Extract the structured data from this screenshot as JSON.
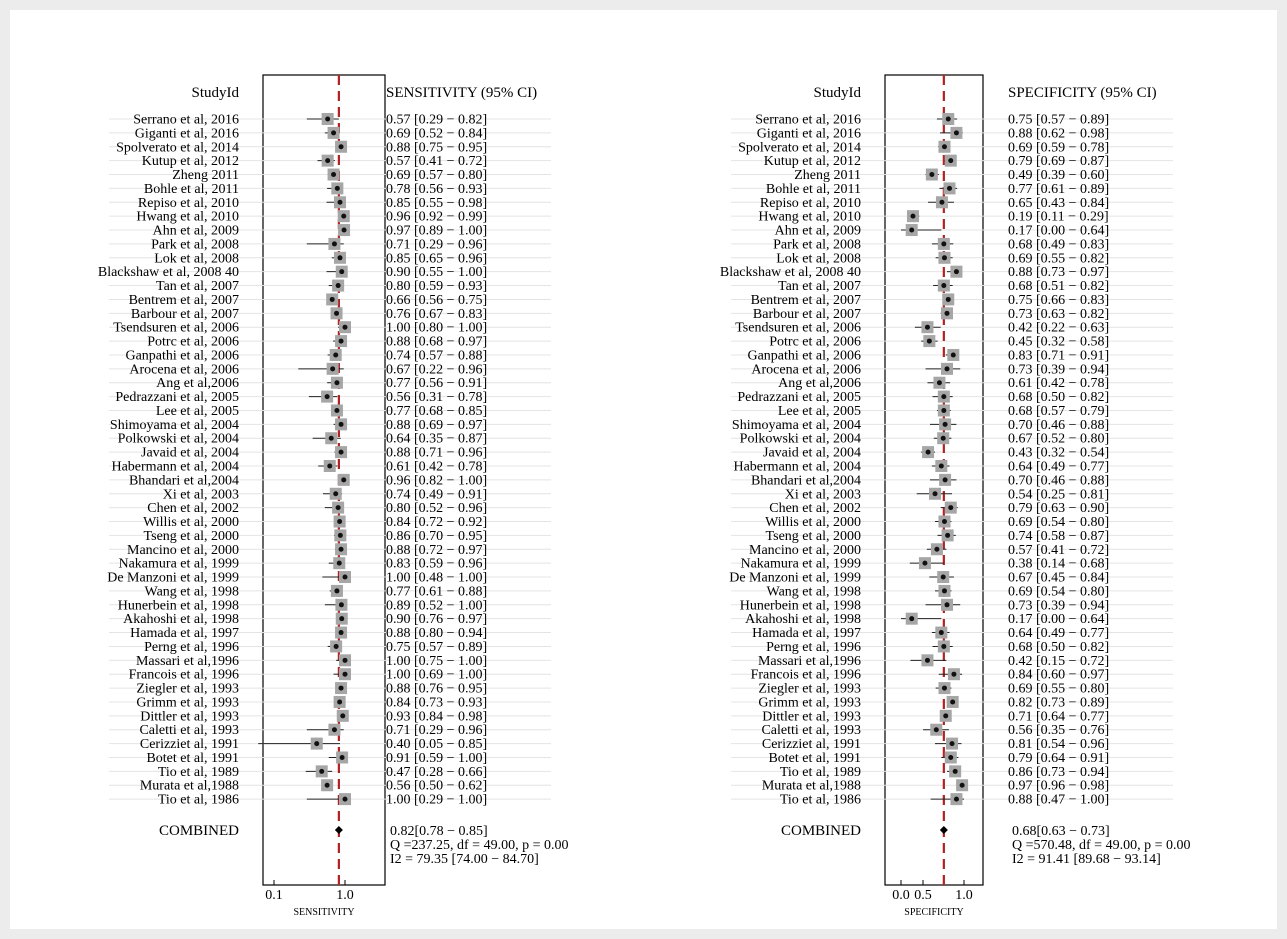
{
  "chart_data": [
    {
      "type": "forest",
      "id": "sens",
      "header_study": "StudyId",
      "header_ci": "SENSITIVITY (95% CI)",
      "xlabel": "SENSITIVITY",
      "x_ticks": [
        "0.1",
        "1.0"
      ],
      "x_scale": "log",
      "xlim": [
        0.05,
        1.45
      ],
      "pooled_value": 0.82,
      "studies": [
        {
          "study": "Serrano et al, 2016",
          "est": 0.57,
          "lo": 0.29,
          "hi": 0.82,
          "label": "0.57 [0.29 − 0.82]"
        },
        {
          "study": "Giganti et al, 2016",
          "est": 0.69,
          "lo": 0.52,
          "hi": 0.84,
          "label": "0.69 [0.52 − 0.84]"
        },
        {
          "study": "Spolverato et al, 2014",
          "est": 0.88,
          "lo": 0.75,
          "hi": 0.95,
          "label": "0.88 [0.75 − 0.95]"
        },
        {
          "study": "Kutup et al, 2012",
          "est": 0.57,
          "lo": 0.41,
          "hi": 0.72,
          "label": "0.57 [0.41 − 0.72]"
        },
        {
          "study": "Zheng 2011",
          "est": 0.69,
          "lo": 0.57,
          "hi": 0.8,
          "label": "0.69 [0.57 − 0.80]"
        },
        {
          "study": "Bohle et al, 2011",
          "est": 0.78,
          "lo": 0.56,
          "hi": 0.93,
          "label": "0.78 [0.56 − 0.93]"
        },
        {
          "study": "Repiso et al, 2010",
          "est": 0.85,
          "lo": 0.55,
          "hi": 0.98,
          "label": "0.85 [0.55 − 0.98]"
        },
        {
          "study": "Hwang et al, 2010",
          "est": 0.96,
          "lo": 0.92,
          "hi": 0.99,
          "label": "0.96 [0.92 − 0.99]"
        },
        {
          "study": "Ahn et al, 2009",
          "est": 0.97,
          "lo": 0.89,
          "hi": 1.0,
          "label": "0.97 [0.89 − 1.00]"
        },
        {
          "study": "Park et al, 2008",
          "est": 0.71,
          "lo": 0.29,
          "hi": 0.96,
          "label": "0.71 [0.29 − 0.96]"
        },
        {
          "study": "Lok et al, 2008",
          "est": 0.85,
          "lo": 0.65,
          "hi": 0.96,
          "label": "0.85 [0.65 − 0.96]"
        },
        {
          "study": "Blackshaw et al, 2008 40",
          "est": 0.9,
          "lo": 0.55,
          "hi": 1.0,
          "label": "0.90 [0.55 − 1.00]"
        },
        {
          "study": "Tan et al, 2007",
          "est": 0.8,
          "lo": 0.59,
          "hi": 0.93,
          "label": "0.80 [0.59 − 0.93]"
        },
        {
          "study": "Bentrem et al, 2007",
          "est": 0.66,
          "lo": 0.56,
          "hi": 0.75,
          "label": "0.66 [0.56 − 0.75]"
        },
        {
          "study": "Barbour et al, 2007",
          "est": 0.76,
          "lo": 0.67,
          "hi": 0.83,
          "label": "0.76 [0.67 − 0.83]"
        },
        {
          "study": "Tsendsuren et al, 2006",
          "est": 1.0,
          "lo": 0.8,
          "hi": 1.0,
          "label": "1.00 [0.80 − 1.00]"
        },
        {
          "study": "Potrc et al, 2006",
          "est": 0.88,
          "lo": 0.68,
          "hi": 0.97,
          "label": "0.88 [0.68 − 0.97]"
        },
        {
          "study": "Ganpathi et al, 2006",
          "est": 0.74,
          "lo": 0.57,
          "hi": 0.88,
          "label": "0.74 [0.57 − 0.88]"
        },
        {
          "study": "Arocena et al, 2006",
          "est": 0.67,
          "lo": 0.22,
          "hi": 0.96,
          "label": "0.67 [0.22 − 0.96]"
        },
        {
          "study": "Ang et al,2006",
          "est": 0.77,
          "lo": 0.56,
          "hi": 0.91,
          "label": "0.77 [0.56 − 0.91]"
        },
        {
          "study": "Pedrazzani et al, 2005",
          "est": 0.56,
          "lo": 0.31,
          "hi": 0.78,
          "label": "0.56 [0.31 − 0.78]"
        },
        {
          "study": "Lee et al, 2005",
          "est": 0.77,
          "lo": 0.68,
          "hi": 0.85,
          "label": "0.77 [0.68 − 0.85]"
        },
        {
          "study": "Shimoyama et al, 2004",
          "est": 0.88,
          "lo": 0.69,
          "hi": 0.97,
          "label": "0.88 [0.69 − 0.97]"
        },
        {
          "study": "Polkowski et al, 2004",
          "est": 0.64,
          "lo": 0.35,
          "hi": 0.87,
          "label": "0.64 [0.35 − 0.87]"
        },
        {
          "study": "Javaid et al, 2004",
          "est": 0.88,
          "lo": 0.71,
          "hi": 0.96,
          "label": "0.88 [0.71 − 0.96]"
        },
        {
          "study": "Habermann et al, 2004",
          "est": 0.61,
          "lo": 0.42,
          "hi": 0.78,
          "label": "0.61 [0.42 − 0.78]"
        },
        {
          "study": "Bhandari et al,2004",
          "est": 0.96,
          "lo": 0.82,
          "hi": 1.0,
          "label": "0.96 [0.82 − 1.00]"
        },
        {
          "study": "Xi et al, 2003",
          "est": 0.74,
          "lo": 0.49,
          "hi": 0.91,
          "label": "0.74 [0.49 − 0.91]"
        },
        {
          "study": "Chen et al, 2002",
          "est": 0.8,
          "lo": 0.52,
          "hi": 0.96,
          "label": "0.80 [0.52 − 0.96]"
        },
        {
          "study": "Willis et al, 2000",
          "est": 0.84,
          "lo": 0.72,
          "hi": 0.92,
          "label": "0.84 [0.72 − 0.92]"
        },
        {
          "study": "Tseng et al, 2000",
          "est": 0.86,
          "lo": 0.7,
          "hi": 0.95,
          "label": "0.86 [0.70 − 0.95]"
        },
        {
          "study": "Mancino et al, 2000",
          "est": 0.88,
          "lo": 0.72,
          "hi": 0.97,
          "label": "0.88 [0.72 − 0.97]"
        },
        {
          "study": "Nakamura et al, 1999",
          "est": 0.83,
          "lo": 0.59,
          "hi": 0.96,
          "label": "0.83 [0.59 − 0.96]"
        },
        {
          "study": "De Manzoni et al, 1999",
          "est": 1.0,
          "lo": 0.48,
          "hi": 1.0,
          "label": "1.00 [0.48 − 1.00]"
        },
        {
          "study": "Wang et al, 1998",
          "est": 0.77,
          "lo": 0.61,
          "hi": 0.88,
          "label": "0.77 [0.61 − 0.88]"
        },
        {
          "study": "Hunerbein et al, 1998",
          "est": 0.89,
          "lo": 0.52,
          "hi": 1.0,
          "label": "0.89 [0.52 − 1.00]"
        },
        {
          "study": "Akahoshi et al, 1998",
          "est": 0.9,
          "lo": 0.76,
          "hi": 0.97,
          "label": "0.90 [0.76 − 0.97]"
        },
        {
          "study": "Hamada et al, 1997",
          "est": 0.88,
          "lo": 0.8,
          "hi": 0.94,
          "label": "0.88 [0.80 − 0.94]"
        },
        {
          "study": "Perng et al, 1996",
          "est": 0.75,
          "lo": 0.57,
          "hi": 0.89,
          "label": "0.75 [0.57 − 0.89]"
        },
        {
          "study": "Massari et al,1996",
          "est": 1.0,
          "lo": 0.75,
          "hi": 1.0,
          "label": "1.00 [0.75 − 1.00]"
        },
        {
          "study": "Francois et al, 1996",
          "est": 1.0,
          "lo": 0.69,
          "hi": 1.0,
          "label": "1.00 [0.69 − 1.00]"
        },
        {
          "study": "Ziegler et al, 1993",
          "est": 0.88,
          "lo": 0.76,
          "hi": 0.95,
          "label": "0.88 [0.76 − 0.95]"
        },
        {
          "study": "Grimm et al, 1993",
          "est": 0.84,
          "lo": 0.73,
          "hi": 0.93,
          "label": "0.84 [0.73 − 0.93]"
        },
        {
          "study": "Dittler et al, 1993",
          "est": 0.93,
          "lo": 0.84,
          "hi": 0.98,
          "label": "0.93 [0.84 − 0.98]"
        },
        {
          "study": "Caletti et al, 1993",
          "est": 0.71,
          "lo": 0.29,
          "hi": 0.96,
          "label": "0.71 [0.29 − 0.96]"
        },
        {
          "study": "Cerizziet al, 1991",
          "est": 0.4,
          "lo": 0.05,
          "hi": 0.85,
          "label": "0.40 [0.05 − 0.85]"
        },
        {
          "study": "Botet et al, 1991",
          "est": 0.91,
          "lo": 0.59,
          "hi": 1.0,
          "label": "0.91 [0.59 − 1.00]"
        },
        {
          "study": "Tio et al, 1989",
          "est": 0.47,
          "lo": 0.28,
          "hi": 0.66,
          "label": "0.47 [0.28 − 0.66]"
        },
        {
          "study": "Murata et al,1988",
          "est": 0.56,
          "lo": 0.5,
          "hi": 0.62,
          "label": "0.56 [0.50 − 0.62]"
        },
        {
          "study": "Tio et al, 1986",
          "est": 1.0,
          "lo": 0.29,
          "hi": 1.0,
          "label": "1.00 [0.29 − 1.00]"
        }
      ],
      "combined": {
        "study": "COMBINED",
        "est": 0.82,
        "lo": 0.78,
        "hi": 0.85,
        "label": "0.82[0.78 − 0.85]"
      },
      "stats": [
        "Q =237.25, df = 49.00, p =  0.00",
        "I2 = 79.35 [74.00 − 84.70]"
      ]
    },
    {
      "type": "forest",
      "id": "spec",
      "header_study": "StudyId",
      "header_ci": "SPECIFICITY (95% CI)",
      "xlabel": "SPECIFICITY",
      "x_ticks": [
        "0.0",
        "0.5",
        "1.0"
      ],
      "x_scale": "linear",
      "xlim": [
        -0.15,
        1.15
      ],
      "pooled_value": 0.68,
      "studies": [
        {
          "study": "Serrano et al, 2016",
          "est": 0.75,
          "lo": 0.57,
          "hi": 0.89,
          "label": "0.75 [0.57 − 0.89]"
        },
        {
          "study": "Giganti et al, 2016",
          "est": 0.88,
          "lo": 0.62,
          "hi": 0.98,
          "label": "0.88 [0.62 − 0.98]"
        },
        {
          "study": "Spolverato et al, 2014",
          "est": 0.69,
          "lo": 0.59,
          "hi": 0.78,
          "label": "0.69 [0.59 − 0.78]"
        },
        {
          "study": "Kutup et al, 2012",
          "est": 0.79,
          "lo": 0.69,
          "hi": 0.87,
          "label": "0.79 [0.69 − 0.87]"
        },
        {
          "study": "Zheng 2011",
          "est": 0.49,
          "lo": 0.39,
          "hi": 0.6,
          "label": "0.49 [0.39 − 0.60]"
        },
        {
          "study": "Bohle et al, 2011",
          "est": 0.77,
          "lo": 0.61,
          "hi": 0.89,
          "label": "0.77 [0.61 − 0.89]"
        },
        {
          "study": "Repiso et al, 2010",
          "est": 0.65,
          "lo": 0.43,
          "hi": 0.84,
          "label": "0.65 [0.43 − 0.84]"
        },
        {
          "study": "Hwang et al, 2010",
          "est": 0.19,
          "lo": 0.11,
          "hi": 0.29,
          "label": "0.19 [0.11 − 0.29]"
        },
        {
          "study": "Ahn et al, 2009",
          "est": 0.17,
          "lo": 0.0,
          "hi": 0.64,
          "label": "0.17 [0.00 − 0.64]"
        },
        {
          "study": "Park et al, 2008",
          "est": 0.68,
          "lo": 0.49,
          "hi": 0.83,
          "label": "0.68 [0.49 − 0.83]"
        },
        {
          "study": "Lok et al, 2008",
          "est": 0.69,
          "lo": 0.55,
          "hi": 0.82,
          "label": "0.69 [0.55 − 0.82]"
        },
        {
          "study": "Blackshaw et al, 2008 40",
          "est": 0.88,
          "lo": 0.73,
          "hi": 0.97,
          "label": "0.88 [0.73 − 0.97]"
        },
        {
          "study": "Tan et al, 2007",
          "est": 0.68,
          "lo": 0.51,
          "hi": 0.82,
          "label": "0.68 [0.51 − 0.82]"
        },
        {
          "study": "Bentrem et al, 2007",
          "est": 0.75,
          "lo": 0.66,
          "hi": 0.83,
          "label": "0.75 [0.66 − 0.83]"
        },
        {
          "study": "Barbour et al, 2007",
          "est": 0.73,
          "lo": 0.63,
          "hi": 0.82,
          "label": "0.73 [0.63 − 0.82]"
        },
        {
          "study": "Tsendsuren et al, 2006",
          "est": 0.42,
          "lo": 0.22,
          "hi": 0.63,
          "label": "0.42 [0.22 − 0.63]"
        },
        {
          "study": "Potrc et al, 2006",
          "est": 0.45,
          "lo": 0.32,
          "hi": 0.58,
          "label": "0.45 [0.32 − 0.58]"
        },
        {
          "study": "Ganpathi et al, 2006",
          "est": 0.83,
          "lo": 0.71,
          "hi": 0.91,
          "label": "0.83 [0.71 − 0.91]"
        },
        {
          "study": "Arocena et al, 2006",
          "est": 0.73,
          "lo": 0.39,
          "hi": 0.94,
          "label": "0.73 [0.39 − 0.94]"
        },
        {
          "study": "Ang et al,2006",
          "est": 0.61,
          "lo": 0.42,
          "hi": 0.78,
          "label": "0.61 [0.42 − 0.78]"
        },
        {
          "study": "Pedrazzani et al, 2005",
          "est": 0.68,
          "lo": 0.5,
          "hi": 0.82,
          "label": "0.68 [0.50 − 0.82]"
        },
        {
          "study": "Lee et al, 2005",
          "est": 0.68,
          "lo": 0.57,
          "hi": 0.79,
          "label": "0.68 [0.57 − 0.79]"
        },
        {
          "study": "Shimoyama et al, 2004",
          "est": 0.7,
          "lo": 0.46,
          "hi": 0.88,
          "label": "0.70 [0.46 − 0.88]"
        },
        {
          "study": "Polkowski et al, 2004",
          "est": 0.67,
          "lo": 0.52,
          "hi": 0.8,
          "label": "0.67 [0.52 − 0.80]"
        },
        {
          "study": "Javaid et al, 2004",
          "est": 0.43,
          "lo": 0.32,
          "hi": 0.54,
          "label": "0.43 [0.32 − 0.54]"
        },
        {
          "study": "Habermann et al, 2004",
          "est": 0.64,
          "lo": 0.49,
          "hi": 0.77,
          "label": "0.64 [0.49 − 0.77]"
        },
        {
          "study": "Bhandari et al,2004",
          "est": 0.7,
          "lo": 0.46,
          "hi": 0.88,
          "label": "0.70 [0.46 − 0.88]"
        },
        {
          "study": "Xi et al, 2003",
          "est": 0.54,
          "lo": 0.25,
          "hi": 0.81,
          "label": "0.54 [0.25 − 0.81]"
        },
        {
          "study": "Chen et al, 2002",
          "est": 0.79,
          "lo": 0.63,
          "hi": 0.9,
          "label": "0.79 [0.63 − 0.90]"
        },
        {
          "study": "Willis et al, 2000",
          "est": 0.69,
          "lo": 0.54,
          "hi": 0.8,
          "label": "0.69 [0.54 − 0.80]"
        },
        {
          "study": "Tseng et al, 2000",
          "est": 0.74,
          "lo": 0.58,
          "hi": 0.87,
          "label": "0.74 [0.58 − 0.87]"
        },
        {
          "study": "Mancino et al, 2000",
          "est": 0.57,
          "lo": 0.41,
          "hi": 0.72,
          "label": "0.57 [0.41 − 0.72]"
        },
        {
          "study": "Nakamura et al, 1999",
          "est": 0.38,
          "lo": 0.14,
          "hi": 0.68,
          "label": "0.38 [0.14 − 0.68]"
        },
        {
          "study": "De Manzoni et al, 1999",
          "est": 0.67,
          "lo": 0.45,
          "hi": 0.84,
          "label": "0.67 [0.45 − 0.84]"
        },
        {
          "study": "Wang et al, 1998",
          "est": 0.69,
          "lo": 0.54,
          "hi": 0.8,
          "label": "0.69 [0.54 − 0.80]"
        },
        {
          "study": "Hunerbein et al, 1998",
          "est": 0.73,
          "lo": 0.39,
          "hi": 0.94,
          "label": "0.73 [0.39 − 0.94]"
        },
        {
          "study": "Akahoshi et al, 1998",
          "est": 0.17,
          "lo": 0.0,
          "hi": 0.64,
          "label": "0.17 [0.00 − 0.64]"
        },
        {
          "study": "Hamada et al, 1997",
          "est": 0.64,
          "lo": 0.49,
          "hi": 0.77,
          "label": "0.64 [0.49 − 0.77]"
        },
        {
          "study": "Perng et al, 1996",
          "est": 0.68,
          "lo": 0.5,
          "hi": 0.82,
          "label": "0.68 [0.50 − 0.82]"
        },
        {
          "study": "Massari et al,1996",
          "est": 0.42,
          "lo": 0.15,
          "hi": 0.72,
          "label": "0.42 [0.15 − 0.72]"
        },
        {
          "study": "Francois et al, 1996",
          "est": 0.84,
          "lo": 0.6,
          "hi": 0.97,
          "label": "0.84 [0.60 − 0.97]"
        },
        {
          "study": "Ziegler et al, 1993",
          "est": 0.69,
          "lo": 0.55,
          "hi": 0.8,
          "label": "0.69 [0.55 − 0.80]"
        },
        {
          "study": "Grimm et al, 1993",
          "est": 0.82,
          "lo": 0.73,
          "hi": 0.89,
          "label": "0.82 [0.73 − 0.89]"
        },
        {
          "study": "Dittler et al, 1993",
          "est": 0.71,
          "lo": 0.64,
          "hi": 0.77,
          "label": "0.71 [0.64 − 0.77]"
        },
        {
          "study": "Caletti et al, 1993",
          "est": 0.56,
          "lo": 0.35,
          "hi": 0.76,
          "label": "0.56 [0.35 − 0.76]"
        },
        {
          "study": "Cerizziet al, 1991",
          "est": 0.81,
          "lo": 0.54,
          "hi": 0.96,
          "label": "0.81 [0.54 − 0.96]"
        },
        {
          "study": "Botet et al, 1991",
          "est": 0.79,
          "lo": 0.64,
          "hi": 0.91,
          "label": "0.79 [0.64 − 0.91]"
        },
        {
          "study": "Tio et al, 1989",
          "est": 0.86,
          "lo": 0.73,
          "hi": 0.94,
          "label": "0.86 [0.73 − 0.94]"
        },
        {
          "study": "Murata et al,1988",
          "est": 0.97,
          "lo": 0.96,
          "hi": 0.98,
          "label": "0.97 [0.96 − 0.98]"
        },
        {
          "study": "Tio et al, 1986",
          "est": 0.88,
          "lo": 0.47,
          "hi": 1.0,
          "label": "0.88 [0.47 − 1.00]"
        }
      ],
      "combined": {
        "study": "COMBINED",
        "est": 0.68,
        "lo": 0.63,
        "hi": 0.73,
        "label": "0.68[0.63 − 0.73]"
      },
      "stats": [
        "Q =570.48, df = 49.00, p =  0.00",
        "I2 = 91.41 [89.68 − 93.14]"
      ]
    }
  ],
  "colors": {
    "reference_line": "#b22222",
    "weight_square": "#a6a6a6",
    "point": "#111111",
    "row_line": "#e4e4e4"
  }
}
